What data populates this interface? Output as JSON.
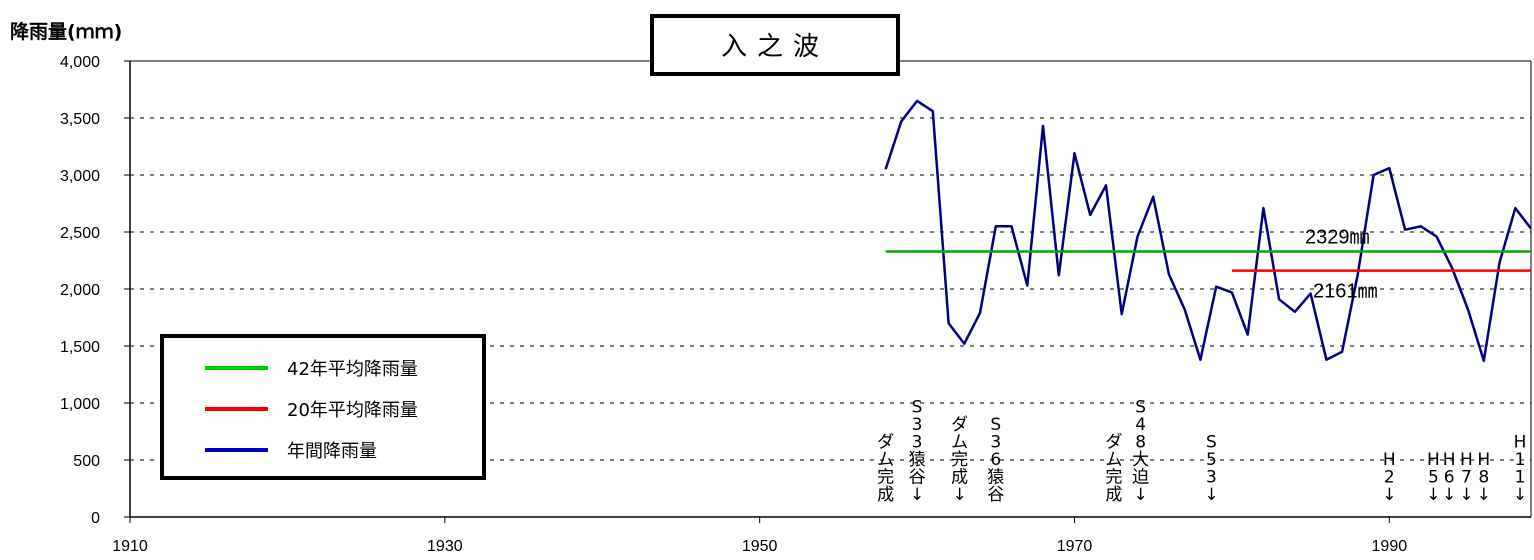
{
  "chart_data": {
    "type": "line",
    "title": "入之波",
    "ylabel": "降雨量(ｍｍ)",
    "xlabel": "",
    "xlim": [
      1910,
      1999
    ],
    "ylim": [
      0,
      4000
    ],
    "x_ticks": [
      "1910",
      "1930",
      "1950",
      "1970",
      "1990"
    ],
    "y_ticks": [
      "0",
      "500",
      "1,000",
      "1,500",
      "2,000",
      "2,500",
      "3,000",
      "3,500",
      "4,000"
    ],
    "grid": "horizontal dashed",
    "legend_position": "bottom-left",
    "series": [
      {
        "name": "年間降雨量",
        "color": "#000080",
        "x": [
          1958,
          1959,
          1960,
          1961,
          1962,
          1963,
          1964,
          1965,
          1966,
          1967,
          1968,
          1969,
          1970,
          1971,
          1972,
          1973,
          1974,
          1975,
          1976,
          1977,
          1978,
          1979,
          1980,
          1981,
          1982,
          1983,
          1984,
          1985,
          1986,
          1987,
          1988,
          1989,
          1990,
          1991,
          1992,
          1993,
          1994,
          1995,
          1996,
          1997,
          1998,
          1999
        ],
        "values": [
          3050,
          3470,
          3650,
          3560,
          1700,
          1520,
          1790,
          2550,
          2550,
          2030,
          3430,
          2120,
          3190,
          2650,
          2910,
          1780,
          2460,
          2810,
          2130,
          1820,
          1380,
          2020,
          1970,
          1600,
          2710,
          1910,
          1800,
          1960,
          1380,
          1450,
          2130,
          3000,
          3060,
          2520,
          2550,
          2460,
          2180,
          1820,
          1370,
          2230,
          2710,
          2530
        ]
      },
      {
        "name": "42年平均降雨量",
        "color": "#00aa00",
        "x": [
          1958,
          1999
        ],
        "values": [
          2329,
          2329
        ],
        "label": "2329㎜"
      },
      {
        "name": "20年平均降雨量",
        "color": "#ff0000",
        "x": [
          1980,
          1999
        ],
        "values": [
          2161,
          2161
        ],
        "label": "2161㎜"
      }
    ],
    "legend": [
      {
        "label": "42年平均降雨量",
        "color": "#00cc00"
      },
      {
        "label": "20年平均降雨量",
        "color": "#ff0000"
      },
      {
        "label": "年間降雨量",
        "color": "#0000cc"
      }
    ],
    "annotations": [
      {
        "year": 1958,
        "text": "ダム完成",
        "arrow": false
      },
      {
        "year": 1960,
        "text": "S33猿谷",
        "arrow": true
      },
      {
        "year": 1962.7,
        "text": "ダム完成",
        "arrow": true
      },
      {
        "year": 1965,
        "text": "S36猿谷",
        "arrow": false
      },
      {
        "year": 1972.5,
        "text": "ダム完成",
        "arrow": false
      },
      {
        "year": 1974.2,
        "text": "S48大迫",
        "arrow": true
      },
      {
        "year": 1978.7,
        "text": "S53",
        "arrow": true
      },
      {
        "year": 1990,
        "text": "H2",
        "arrow": true
      },
      {
        "year": 1992.8,
        "text": "H5",
        "arrow": true
      },
      {
        "year": 1993.8,
        "text": "H6",
        "arrow": true
      },
      {
        "year": 1994.9,
        "text": "H7",
        "arrow": true
      },
      {
        "year": 1996,
        "text": "H8",
        "arrow": true
      },
      {
        "year": 1998.3,
        "text": "H11",
        "arrow": true
      }
    ]
  }
}
